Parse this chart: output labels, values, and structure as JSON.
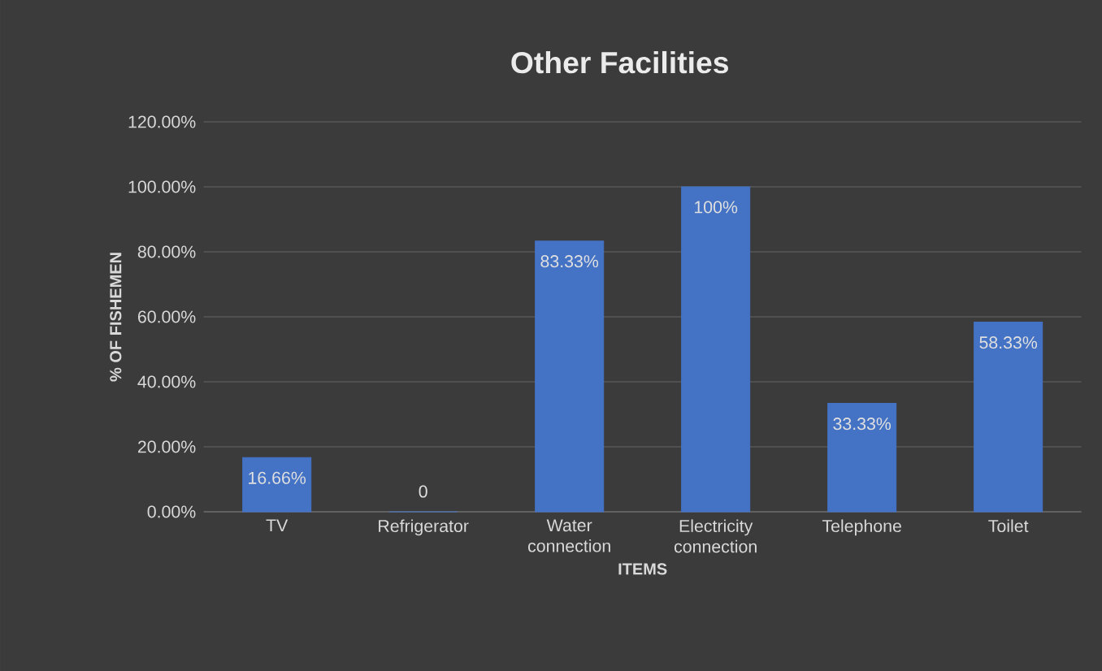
{
  "chart_data": {
    "type": "bar",
    "title": "Other Facilities",
    "xlabel": "ITEMS",
    "ylabel": "% OF FISHEMEN",
    "categories": [
      "TV",
      "Refrigerator",
      "Water connection",
      "Electricity connection",
      "Telephone",
      "Toilet"
    ],
    "values": [
      16.66,
      0,
      83.33,
      100,
      33.33,
      58.33
    ],
    "value_labels": [
      "16.66%",
      "0",
      "83.33%",
      "100%",
      "33.33%",
      "58.33%"
    ],
    "color": "#4472c4",
    "ylim": [
      0,
      120
    ],
    "yticks": [
      {
        "value": 0,
        "label": "0.00%"
      },
      {
        "value": 20,
        "label": "20.00%"
      },
      {
        "value": 40,
        "label": "40.00%"
      },
      {
        "value": 60,
        "label": "60.00%"
      },
      {
        "value": 80,
        "label": "80.00%"
      },
      {
        "value": 100,
        "label": "100.00%"
      },
      {
        "value": 120,
        "label": "120.00%"
      }
    ],
    "grid": "y"
  }
}
